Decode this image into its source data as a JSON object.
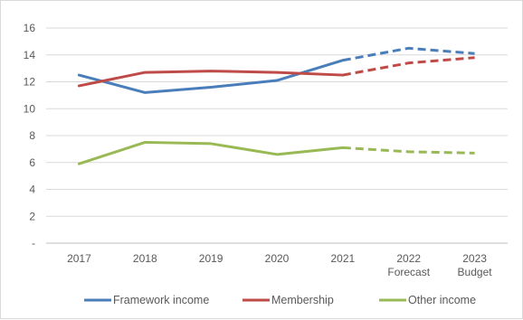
{
  "chart_data": {
    "type": "line",
    "title": "",
    "xlabel": "",
    "ylabel": "",
    "categories": [
      [
        "2017"
      ],
      [
        "2018"
      ],
      [
        "2019"
      ],
      [
        "2020"
      ],
      [
        "2021"
      ],
      [
        "2022",
        "Forecast"
      ],
      [
        "2023",
        "Budget"
      ]
    ],
    "actual_through_index": 4,
    "line_style_after_actual": "dashed",
    "y_ticks": [
      "-",
      "2",
      "4",
      "6",
      "8",
      "10",
      "12",
      "14",
      "16"
    ],
    "ylim": [
      0,
      16
    ],
    "grid": "horizontal",
    "legend_position": "bottom",
    "series": [
      {
        "name": "Framework income",
        "color": "#4a7ebb",
        "values": [
          12.5,
          11.2,
          11.6,
          12.1,
          13.6,
          14.5,
          14.1
        ]
      },
      {
        "name": "Membership",
        "color": "#be4b48",
        "values": [
          11.7,
          12.7,
          12.8,
          12.7,
          12.5,
          13.4,
          13.8
        ]
      },
      {
        "name": "Other income",
        "color": "#98b954",
        "values": [
          5.9,
          7.5,
          7.4,
          6.6,
          7.1,
          6.8,
          6.7
        ]
      }
    ]
  }
}
